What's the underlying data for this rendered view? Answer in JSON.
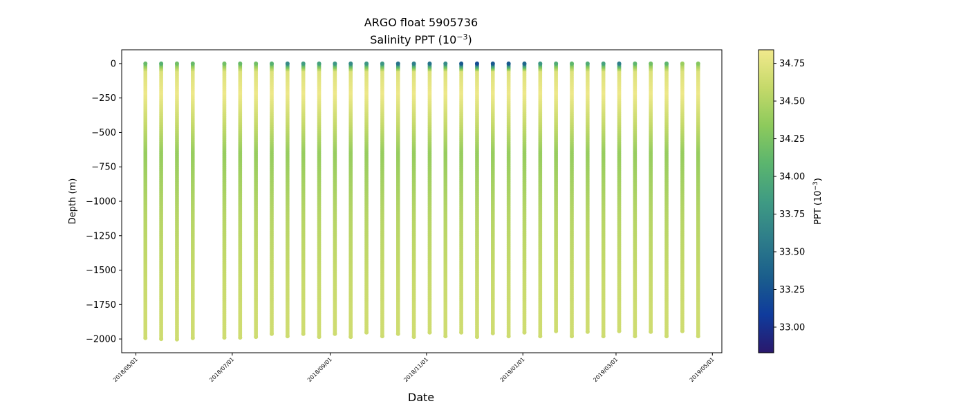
{
  "chart_data": {
    "type": "scatter",
    "title": "ARGO float 5905736",
    "subtitle_prefix": "Salinity PPT (10",
    "subtitle_exp": "−3",
    "subtitle_suffix": ")",
    "xlabel": "Date",
    "ylabel": "Depth (m)",
    "xlim": [
      "2018-04-22",
      "2019-05-07"
    ],
    "ylim": [
      -2100,
      100
    ],
    "x_ticks": [
      "2018/05/01",
      "2018/07/01",
      "2018/09/01",
      "2018/11/01",
      "2019/01/01",
      "2019/03/01",
      "2019/05/01"
    ],
    "y_ticks": [
      0,
      -250,
      -500,
      -750,
      -1000,
      -1250,
      -1500,
      -1750,
      -2000
    ],
    "y_tick_labels": [
      "0",
      "−250",
      "−500",
      "−750",
      "−1000",
      "−1250",
      "−1500",
      "−1750",
      "−2000"
    ],
    "colorbar": {
      "label_prefix": "PPT (10",
      "label_exp": "−3",
      "label_suffix": ")",
      "range": [
        32.83,
        34.84
      ],
      "ticks": [
        33.0,
        33.25,
        33.5,
        33.75,
        34.0,
        34.25,
        34.5,
        34.75
      ],
      "tick_labels": [
        "33.00",
        "33.25",
        "33.50",
        "33.75",
        "34.00",
        "34.25",
        "34.50",
        "34.75"
      ],
      "colormap": "haline",
      "stops": [
        "#2a186c",
        "#0f3b9c",
        "#1a5e8c",
        "#2e7d8a",
        "#3f9b83",
        "#5bb56e",
        "#8dca5c",
        "#c5d96a",
        "#f1e98c"
      ]
    },
    "profiles": [
      {
        "date": "2018-05-07",
        "max_depth": -1993,
        "surface_salinity": 34.15
      },
      {
        "date": "2018-05-17",
        "max_depth": -2000,
        "surface_salinity": 34.05
      },
      {
        "date": "2018-05-27",
        "max_depth": -2003,
        "surface_salinity": 34.2
      },
      {
        "date": "2018-06-06",
        "max_depth": -1993,
        "surface_salinity": 34.15
      },
      {
        "date": "2018-06-26",
        "max_depth": -1990,
        "surface_salinity": 34.2
      },
      {
        "date": "2018-07-06",
        "max_depth": -1990,
        "surface_salinity": 34.15
      },
      {
        "date": "2018-07-16",
        "max_depth": -1985,
        "surface_salinity": 34.2
      },
      {
        "date": "2018-07-26",
        "max_depth": -1963,
        "surface_salinity": 34.05
      },
      {
        "date": "2018-08-05",
        "max_depth": -1980,
        "surface_salinity": 33.7
      },
      {
        "date": "2018-08-15",
        "max_depth": -1963,
        "surface_salinity": 33.85
      },
      {
        "date": "2018-08-25",
        "max_depth": -1985,
        "surface_salinity": 33.9
      },
      {
        "date": "2018-09-04",
        "max_depth": -1963,
        "surface_salinity": 33.8
      },
      {
        "date": "2018-09-14",
        "max_depth": -1985,
        "surface_salinity": 33.7
      },
      {
        "date": "2018-09-24",
        "max_depth": -1953,
        "surface_salinity": 33.8
      },
      {
        "date": "2018-10-04",
        "max_depth": -1980,
        "surface_salinity": 33.8
      },
      {
        "date": "2018-10-14",
        "max_depth": -1963,
        "surface_salinity": 33.5
      },
      {
        "date": "2018-10-24",
        "max_depth": -1985,
        "surface_salinity": 33.6
      },
      {
        "date": "2018-11-03",
        "max_depth": -1953,
        "surface_salinity": 33.5
      },
      {
        "date": "2018-11-13",
        "max_depth": -1980,
        "surface_salinity": 33.7
      },
      {
        "date": "2018-11-23",
        "max_depth": -1953,
        "surface_salinity": 33.3
      },
      {
        "date": "2018-12-03",
        "max_depth": -1985,
        "surface_salinity": 33.2
      },
      {
        "date": "2018-12-13",
        "max_depth": -1958,
        "surface_salinity": 33.3
      },
      {
        "date": "2018-12-23",
        "max_depth": -1980,
        "surface_salinity": 33.3
      },
      {
        "date": "2019-01-02",
        "max_depth": -1953,
        "surface_salinity": 33.4
      },
      {
        "date": "2019-01-12",
        "max_depth": -1980,
        "surface_salinity": 33.8
      },
      {
        "date": "2019-01-22",
        "max_depth": -1943,
        "surface_salinity": 34.0
      },
      {
        "date": "2019-02-01",
        "max_depth": -1980,
        "surface_salinity": 34.1
      },
      {
        "date": "2019-02-11",
        "max_depth": -1948,
        "surface_salinity": 34.0
      },
      {
        "date": "2019-02-21",
        "max_depth": -1980,
        "surface_salinity": 33.9
      },
      {
        "date": "2019-03-03",
        "max_depth": -1943,
        "surface_salinity": 33.6
      },
      {
        "date": "2019-03-13",
        "max_depth": -1980,
        "surface_salinity": 34.1
      },
      {
        "date": "2019-03-23",
        "max_depth": -1948,
        "surface_salinity": 34.2
      },
      {
        "date": "2019-04-02",
        "max_depth": -1980,
        "surface_salinity": 34.1
      },
      {
        "date": "2019-04-12",
        "max_depth": -1943,
        "surface_salinity": 34.4
      },
      {
        "date": "2019-04-22",
        "max_depth": -1980,
        "surface_salinity": 34.3
      }
    ]
  }
}
